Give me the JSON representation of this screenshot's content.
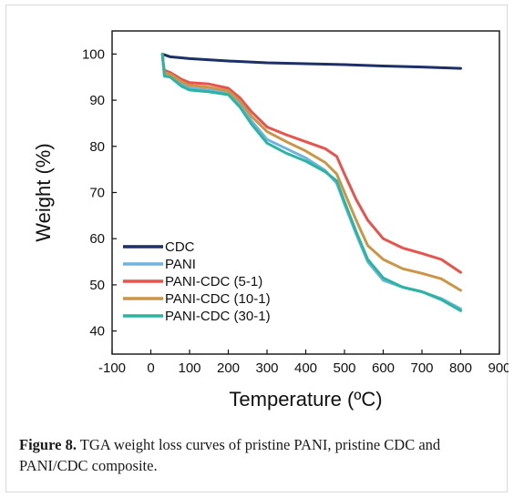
{
  "chart_data": {
    "type": "line",
    "xlabel": "Temperature (ºC)",
    "ylabel": "Weight (%)",
    "xlim": [
      -100,
      900
    ],
    "ylim": [
      35,
      105
    ],
    "xticks": [
      -100,
      0,
      100,
      200,
      300,
      400,
      500,
      600,
      700,
      800,
      900
    ],
    "yticks": [
      40,
      50,
      60,
      70,
      80,
      90,
      100
    ],
    "grid": false,
    "legend_position": "bottom-left",
    "series": [
      {
        "name": "CDC",
        "color": "#1c2f66",
        "x": [
          30,
          50,
          100,
          200,
          300,
          400,
          500,
          600,
          700,
          800
        ],
        "y": [
          100,
          99.4,
          99.0,
          98.5,
          98.1,
          97.9,
          97.7,
          97.4,
          97.2,
          96.9
        ]
      },
      {
        "name": "PANI",
        "color": "#6fb3e0",
        "x": [
          30,
          32,
          35,
          50,
          80,
          100,
          150,
          200,
          230,
          260,
          300,
          350,
          400,
          450,
          480,
          500,
          530,
          560,
          600,
          650,
          700,
          750,
          800
        ],
        "y": [
          100,
          98,
          95.8,
          95.4,
          93.5,
          92.6,
          92.2,
          91.5,
          89,
          85.5,
          81.5,
          79.5,
          77.5,
          74.8,
          72,
          67.5,
          61,
          55,
          51,
          49.5,
          48.5,
          47,
          44.8
        ]
      },
      {
        "name": "PANI-CDC (5-1)",
        "color": "#e8534d",
        "x": [
          30,
          32,
          35,
          50,
          80,
          100,
          150,
          200,
          230,
          260,
          300,
          350,
          400,
          450,
          480,
          500,
          530,
          560,
          600,
          650,
          700,
          750,
          800
        ],
        "y": [
          100,
          98,
          96.5,
          96.0,
          94.5,
          93.8,
          93.5,
          92.6,
          90.5,
          87.5,
          84.2,
          82.5,
          81.0,
          79.5,
          77.8,
          74,
          68.5,
          64,
          60,
          58,
          56.8,
          55.5,
          52.7
        ]
      },
      {
        "name": "PANI-CDC (10-1)",
        "color": "#cc9545",
        "x": [
          30,
          32,
          35,
          50,
          80,
          100,
          150,
          200,
          230,
          260,
          300,
          350,
          400,
          450,
          480,
          500,
          530,
          560,
          600,
          650,
          700,
          750,
          800
        ],
        "y": [
          100,
          98,
          96.0,
          95.6,
          94.0,
          93.2,
          92.8,
          92.0,
          89.8,
          86.5,
          83.2,
          81.0,
          79.0,
          76.5,
          74,
          70,
          64,
          58.5,
          55.5,
          53.5,
          52.5,
          51.3,
          48.8
        ]
      },
      {
        "name": "PANI-CDC (30-1)",
        "color": "#2bb5a0",
        "x": [
          30,
          32,
          35,
          50,
          80,
          100,
          150,
          200,
          230,
          260,
          300,
          350,
          400,
          450,
          480,
          500,
          530,
          560,
          600,
          650,
          700,
          750,
          800
        ],
        "y": [
          100,
          98,
          95.2,
          95.0,
          93.0,
          92.2,
          91.8,
          91.2,
          88.5,
          84.8,
          80.7,
          78.5,
          76.8,
          74.5,
          72.5,
          68,
          61.5,
          55.5,
          51.5,
          49.5,
          48.5,
          46.8,
          44.4
        ]
      }
    ]
  },
  "caption": {
    "label": "Figure 8.",
    "text": " TGA weight loss curves of pristine PANI, pristine CDC and PANI/CDC composite."
  }
}
